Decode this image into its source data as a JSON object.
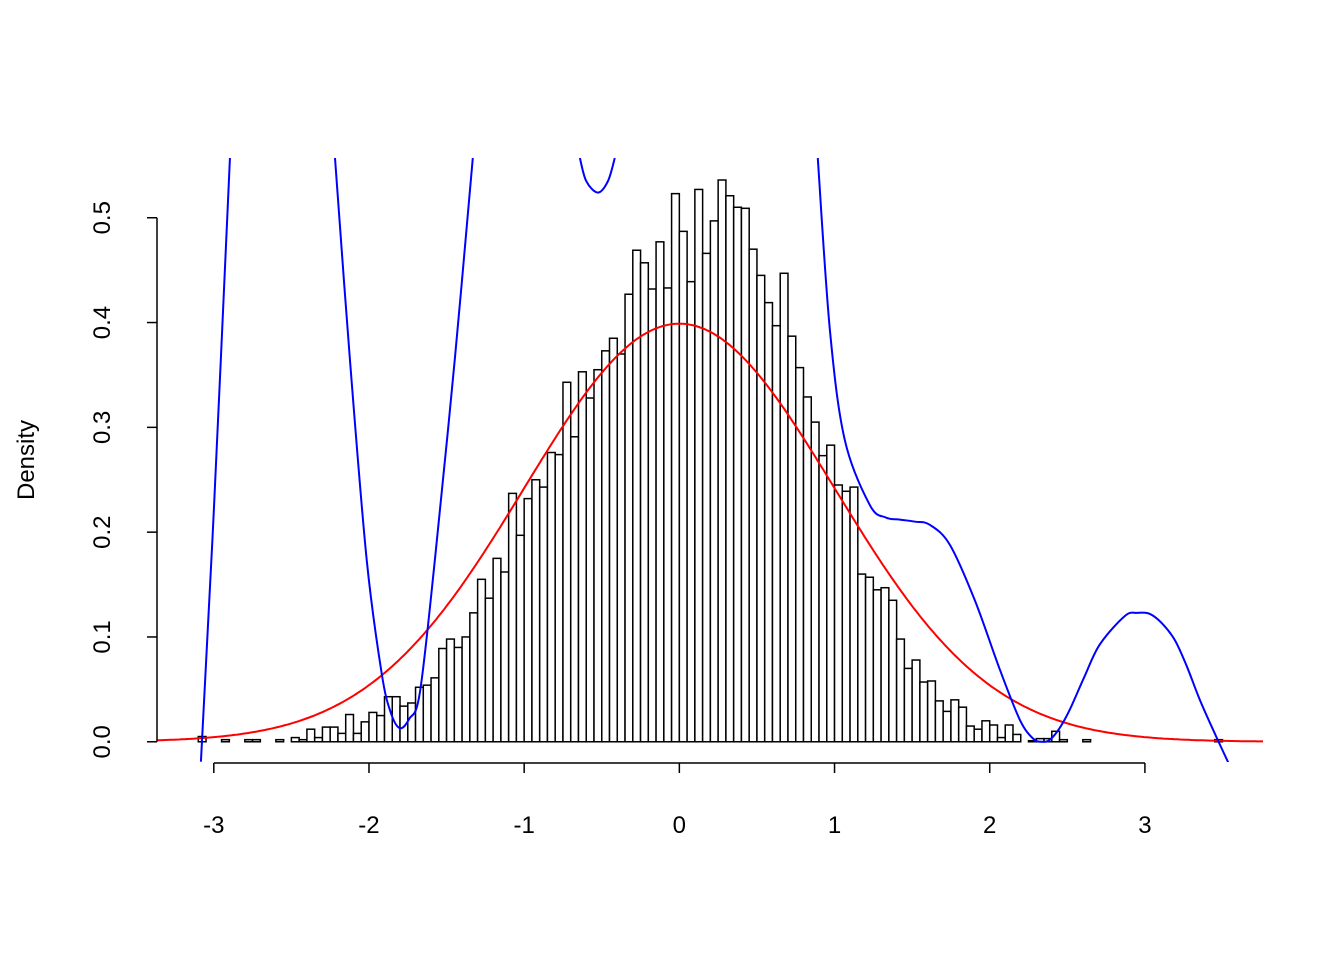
{
  "chart_data": {
    "type": "bar",
    "subtype": "histogram",
    "title": "",
    "xlabel": "",
    "ylabel": "Density",
    "xlim": [
      -3.366,
      3.761
    ],
    "ylim": [
      -0.0193,
      0.557
    ],
    "x_ticks": [
      "-3",
      "-2",
      "-1",
      "0",
      "1",
      "2",
      "3"
    ],
    "x_tick_values": [
      -3,
      -2,
      -1,
      0,
      1,
      2,
      3
    ],
    "y_ticks": [
      "0.0",
      "0.1",
      "0.2",
      "0.3",
      "0.4",
      "0.5"
    ],
    "y_tick_values": [
      0,
      0.1,
      0.2,
      0.3,
      0.4,
      0.5
    ],
    "grid": false,
    "histogram": {
      "breaks_start": -3.1,
      "bin_width": 0.05,
      "fill": "#ffffff",
      "stroke": "#000000",
      "values": [
        0.005,
        0,
        0,
        0.002,
        0,
        0,
        0.002,
        0.002,
        0,
        0,
        0.002,
        0,
        0.004,
        0.002,
        0.012,
        0.004,
        0.014,
        0.014,
        0.008,
        0.026,
        0.008,
        0.019,
        0.028,
        0.025,
        0.043,
        0.043,
        0.034,
        0.037,
        0.052,
        0.054,
        0.061,
        0.089,
        0.098,
        0.09,
        0.1,
        0.123,
        0.155,
        0.137,
        0.175,
        0.162,
        0.237,
        0.197,
        0.232,
        0.25,
        0.243,
        0.276,
        0.274,
        0.343,
        0.291,
        0.353,
        0.328,
        0.355,
        0.373,
        0.385,
        0.37,
        0.427,
        0.469,
        0.457,
        0.432,
        0.477,
        0.433,
        0.523,
        0.487,
        0.439,
        0.527,
        0.466,
        0.497,
        0.536,
        0.521,
        0.51,
        0.509,
        0.47,
        0.445,
        0.419,
        0.397,
        0.447,
        0.387,
        0.357,
        0.329,
        0.305,
        0.273,
        0.283,
        0.245,
        0.239,
        0.243,
        0.16,
        0.157,
        0.145,
        0.147,
        0.135,
        0.098,
        0.07,
        0.078,
        0.057,
        0.058,
        0.039,
        0.029,
        0.04,
        0.033,
        0.015,
        0.012,
        0.02,
        0.016,
        0.004,
        0.016,
        0.007,
        0,
        0.001,
        0.003,
        0.003,
        0.01,
        0.002,
        0,
        0,
        0.002,
        0,
        0,
        0,
        0,
        0,
        0,
        0,
        0,
        0,
        0,
        0,
        0,
        0,
        0,
        0,
        0,
        0.002
      ]
    },
    "curves": [
      {
        "kind": "normal_density",
        "mean": 0,
        "sd": 1,
        "color": "#ff0000"
      },
      {
        "kind": "fitted",
        "color": "#0000ff",
        "segments": [
          [
            [
              -3.083,
              -0.019
            ],
            [
              -3.0,
              0.22
            ],
            [
              -2.896,
              0.557
            ]
          ],
          [
            [
              -2.219,
              0.557
            ],
            [
              -2.123,
              0.365
            ],
            [
              -2.015,
              0.174
            ],
            [
              -1.919,
              0.066
            ],
            [
              -1.86,
              0.028
            ],
            [
              -1.801,
              0.013
            ],
            [
              -1.74,
              0.022
            ],
            [
              -1.672,
              0.047
            ],
            [
              -1.575,
              0.174
            ],
            [
              -1.447,
              0.365
            ],
            [
              -1.331,
              0.557
            ]
          ],
          [
            [
              -0.641,
              0.557
            ],
            [
              -0.6,
              0.535
            ],
            [
              -0.525,
              0.524
            ],
            [
              -0.46,
              0.535
            ],
            [
              -0.416,
              0.557
            ]
          ],
          [
            [
              0.892,
              0.557
            ],
            [
              0.97,
              0.393
            ],
            [
              1.066,
              0.288
            ],
            [
              1.227,
              0.226
            ],
            [
              1.33,
              0.214
            ],
            [
              1.421,
              0.212
            ],
            [
              1.52,
              0.21
            ],
            [
              1.614,
              0.207
            ],
            [
              1.743,
              0.188
            ],
            [
              1.904,
              0.135
            ],
            [
              2.065,
              0.069
            ],
            [
              2.194,
              0.021
            ],
            [
              2.28,
              0.003
            ],
            [
              2.34,
              0.0
            ],
            [
              2.388,
              0.002
            ],
            [
              2.45,
              0.013
            ],
            [
              2.517,
              0.031
            ],
            [
              2.61,
              0.062
            ],
            [
              2.71,
              0.093
            ],
            [
              2.871,
              0.12
            ],
            [
              2.95,
              0.123
            ],
            [
              3.032,
              0.122
            ],
            [
              3.11,
              0.113
            ],
            [
              3.193,
              0.097
            ],
            [
              3.27,
              0.072
            ],
            [
              3.354,
              0.04
            ],
            [
              3.45,
              0.008
            ],
            [
              3.541,
              -0.021
            ]
          ]
        ]
      }
    ]
  }
}
